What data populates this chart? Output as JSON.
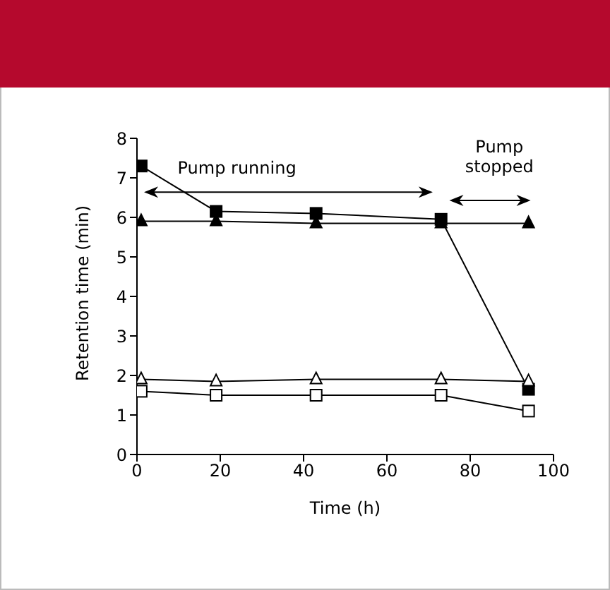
{
  "chart_data": {
    "type": "line",
    "xlabel": "Time (h)",
    "ylabel": "Retention time (min)",
    "xlim": [
      0,
      100
    ],
    "xticks": [
      0,
      20,
      40,
      60,
      80,
      100
    ],
    "ylim": [
      0,
      8
    ],
    "yticks": [
      0,
      1,
      2,
      3,
      4,
      5,
      6,
      7,
      8
    ],
    "line_style": "solid",
    "annotations": [
      "Pump running",
      "Pump stopped"
    ],
    "series": [
      {
        "color": "#000000",
        "marker": "square",
        "x": [
          1,
          19,
          43,
          73,
          94
        ],
        "values": [
          7.3,
          6.15,
          6.1,
          5.95,
          1.65
        ]
      },
      {
        "color": "#000000",
        "marker": "triangle",
        "x": [
          1,
          19,
          43,
          73,
          94
        ],
        "values": [
          5.9,
          5.9,
          5.85,
          5.85,
          5.85
        ]
      },
      {
        "color": "#ffffff",
        "marker": "triangle",
        "x": [
          1,
          19,
          43,
          73,
          94
        ],
        "values": [
          1.9,
          1.85,
          1.9,
          1.9,
          1.85
        ]
      },
      {
        "color": "#ffffff",
        "marker": "square",
        "x": [
          1,
          19,
          43,
          73,
          94
        ],
        "values": [
          1.6,
          1.5,
          1.5,
          1.5,
          1.1
        ]
      }
    ]
  }
}
